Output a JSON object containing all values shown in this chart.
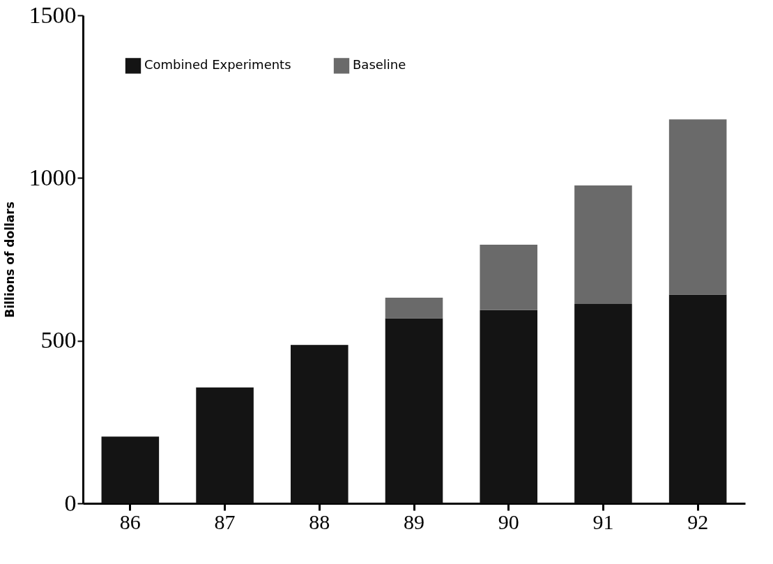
{
  "chart_data": {
    "type": "bar",
    "ylabel": "Billions of dollars",
    "categories": [
      "86",
      "87",
      "88",
      "89",
      "90",
      "91",
      "92"
    ],
    "stacked": true,
    "series": [
      {
        "name": "Combined Experiments",
        "color": "#141414",
        "values": [
          205,
          356,
          487,
          569,
          594,
          613,
          642
        ]
      },
      {
        "name": "Baseline",
        "color": "#6a6a6a",
        "values": [
          0,
          0,
          0,
          63,
          201,
          364,
          538
        ]
      }
    ],
    "ylim": [
      0,
      1500
    ],
    "yticks": [
      0,
      500,
      1000,
      1500
    ],
    "grid": false,
    "legend": "top left"
  }
}
